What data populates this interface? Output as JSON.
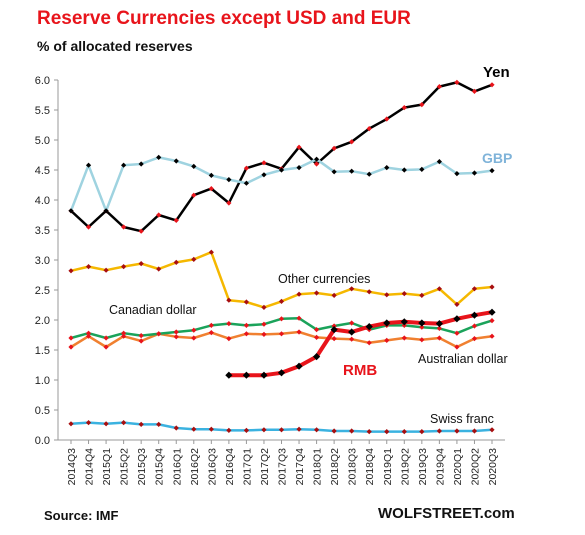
{
  "title": "Reserve Currencies except USD and EUR",
  "subtitle": "% of allocated reserves",
  "source": "Source: IMF",
  "brand": "WOLFSTREET.com",
  "chart_data": {
    "type": "line",
    "title": "Reserve Currencies except USD and EUR",
    "ylabel": "% of allocated reserves",
    "xlabel": "",
    "ylim": [
      0,
      6
    ],
    "yticks": [
      "0.0",
      "0.5",
      "1.0",
      "1.5",
      "2.0",
      "2.5",
      "3.0",
      "3.5",
      "4.0",
      "4.5",
      "5.0",
      "5.5",
      "6.0"
    ],
    "grid": false,
    "legend": "inline labels",
    "categories": [
      "2014Q3",
      "2014Q4",
      "2015Q1",
      "2015Q2",
      "2015Q3",
      "2015Q4",
      "2016Q1",
      "2016Q2",
      "2016Q3",
      "2016Q4",
      "2017Q1",
      "2017Q2",
      "2017Q3",
      "2017Q4",
      "2018Q1",
      "2018Q2",
      "2018Q3",
      "2018Q4",
      "2019Q1",
      "2019Q2",
      "2019Q3",
      "2019Q4",
      "2020Q1",
      "2020Q2",
      "2020Q3"
    ],
    "series": [
      {
        "name": "Yen",
        "color": "#000000",
        "marker": "#e8141b",
        "width": 2.5,
        "values": [
          3.82,
          3.55,
          3.82,
          3.55,
          3.48,
          3.75,
          3.66,
          4.08,
          4.19,
          3.95,
          4.53,
          4.62,
          4.52,
          4.88,
          4.6,
          4.86,
          4.97,
          5.19,
          5.35,
          5.54,
          5.59,
          5.89,
          5.96,
          5.81,
          5.92
        ]
      },
      {
        "name": "GBP",
        "color": "#9fd3e0",
        "marker": "#000000",
        "width": 2.5,
        "values": [
          3.82,
          4.58,
          3.82,
          4.58,
          4.6,
          4.71,
          4.65,
          4.56,
          4.41,
          4.34,
          4.28,
          4.42,
          4.5,
          4.54,
          4.68,
          4.47,
          4.48,
          4.43,
          4.54,
          4.5,
          4.51,
          4.64,
          4.44,
          4.45,
          4.49
        ]
      },
      {
        "name": "Other currencies",
        "color": "#f5b800",
        "marker": "#a80f10",
        "width": 2.5,
        "values": [
          2.82,
          2.89,
          2.83,
          2.89,
          2.94,
          2.85,
          2.96,
          3.01,
          3.13,
          2.33,
          2.3,
          2.21,
          2.31,
          2.43,
          2.45,
          2.41,
          2.52,
          2.47,
          2.42,
          2.44,
          2.41,
          2.52,
          2.26,
          2.52,
          2.55
        ]
      },
      {
        "name": "Canadian dollar",
        "color": "#1aa35a",
        "marker": "#e8141b",
        "width": 2.5,
        "values": [
          1.7,
          1.78,
          1.7,
          1.78,
          1.74,
          1.77,
          1.8,
          1.83,
          1.91,
          1.94,
          1.91,
          1.93,
          2.02,
          2.03,
          1.84,
          1.9,
          1.95,
          1.84,
          1.91,
          1.91,
          1.88,
          1.86,
          1.78,
          1.9,
          1.99
        ]
      },
      {
        "name": "Australian dollar",
        "color": "#f08030",
        "marker": "#e8141b",
        "width": 2.5,
        "values": [
          1.55,
          1.73,
          1.55,
          1.73,
          1.65,
          1.77,
          1.72,
          1.7,
          1.79,
          1.69,
          1.77,
          1.76,
          1.77,
          1.8,
          1.71,
          1.69,
          1.68,
          1.62,
          1.66,
          1.7,
          1.67,
          1.7,
          1.55,
          1.69,
          1.73
        ]
      },
      {
        "name": "RMB",
        "color": "#e8141b",
        "marker": "#000000",
        "width": 4,
        "values": [
          null,
          null,
          null,
          null,
          null,
          null,
          null,
          null,
          null,
          1.08,
          1.08,
          1.08,
          1.12,
          1.23,
          1.39,
          1.84,
          1.8,
          1.89,
          1.95,
          1.97,
          1.95,
          1.94,
          2.02,
          2.08,
          2.13
        ]
      },
      {
        "name": "Swiss franc",
        "color": "#3ab2e0",
        "marker": "#a80f10",
        "width": 2.5,
        "values": [
          0.27,
          0.29,
          0.27,
          0.29,
          0.26,
          0.26,
          0.2,
          0.18,
          0.18,
          0.16,
          0.16,
          0.17,
          0.17,
          0.18,
          0.17,
          0.15,
          0.15,
          0.14,
          0.14,
          0.14,
          0.14,
          0.15,
          0.15,
          0.15,
          0.17
        ]
      }
    ],
    "annotations": [
      {
        "text": "Yen",
        "color": "#000000",
        "bold": true
      },
      {
        "text": "GBP",
        "color": "#7fb3d9",
        "bold": true
      },
      {
        "text": "Other currencies",
        "color": "#111111",
        "bold": false
      },
      {
        "text": "Canadian dollar",
        "color": "#111111",
        "bold": false
      },
      {
        "text": "Australian dollar",
        "color": "#111111",
        "bold": false
      },
      {
        "text": "RMB",
        "color": "#e8141b",
        "bold": true
      },
      {
        "text": "Swiss franc",
        "color": "#111111",
        "bold": false
      }
    ]
  }
}
